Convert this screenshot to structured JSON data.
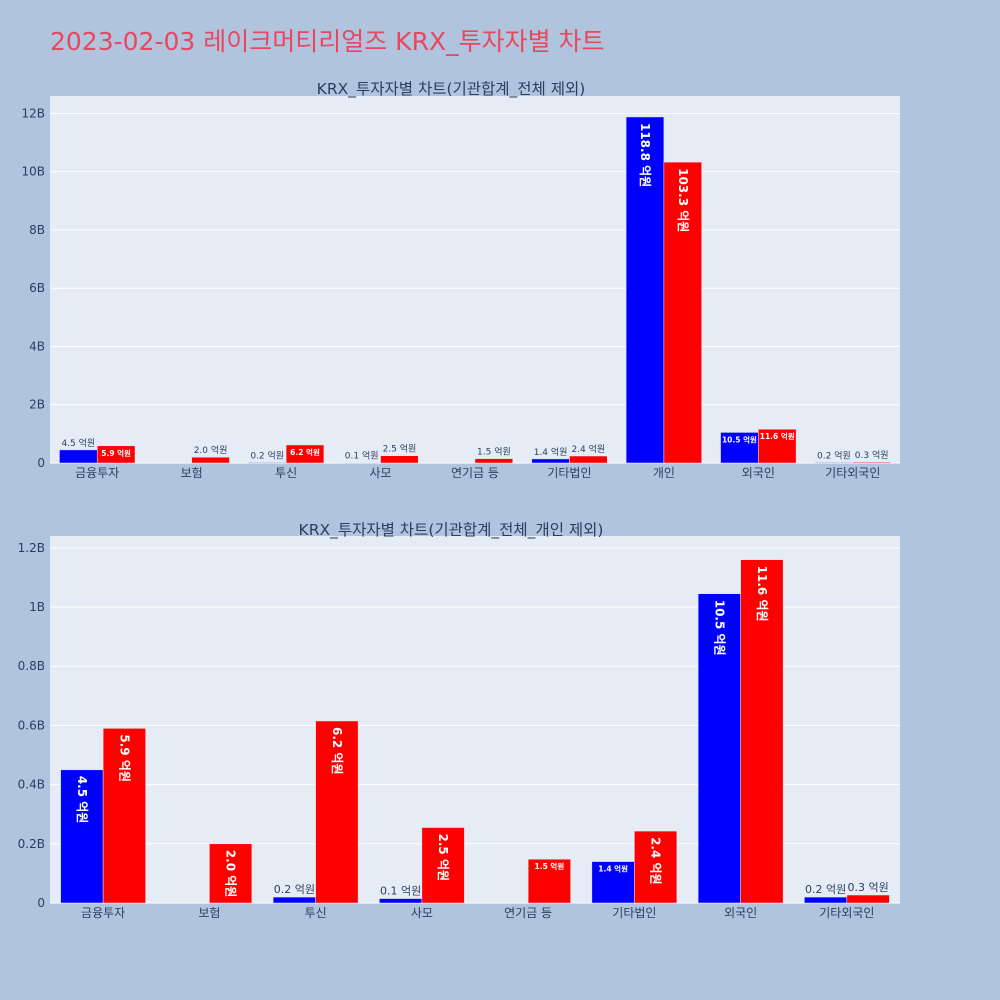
{
  "page_title": "2023-02-03 레이크머티리얼즈 KRX_투자자별 차트",
  "colors": {
    "buy": "#0000ff",
    "sell": "#ff0000",
    "title": "#e8475f",
    "plot_bg": "#e5ecf6",
    "page_bg": "#b0c4de",
    "text": "#2a3f5f"
  },
  "chart_data": [
    {
      "type": "bar",
      "title": "KRX_투자자별 차트(기관합계_전체 제외)",
      "categories": [
        "금융투자",
        "보험",
        "투신",
        "사모",
        "연기금 등",
        "기타법인",
        "개인",
        "외국인",
        "기타외국인"
      ],
      "ylim": [
        0,
        12.6
      ],
      "yticks": [
        0,
        2,
        4,
        6,
        8,
        10,
        12
      ],
      "ytick_labels": [
        "0",
        "2B",
        "4B",
        "6B",
        "8B",
        "10B",
        "12B"
      ],
      "grid": true,
      "series": [
        {
          "color": "#0000ff",
          "values": [
            0.45,
            0,
            0.02,
            0.01,
            0,
            0.14,
            11.88,
            1.05,
            0.02
          ],
          "labels": [
            "4.5 억원",
            "",
            "0.2 억원",
            "0.1 억원",
            "",
            "1.4 억원",
            "118.8 억원",
            "10.5 억원",
            "0.2 억원"
          ]
        },
        {
          "color": "#ff0000",
          "values": [
            0.59,
            0.2,
            0.62,
            0.25,
            0.15,
            0.24,
            10.33,
            1.16,
            0.03
          ],
          "labels": [
            "5.9 억원",
            "2.0 억원",
            "6.2 억원",
            "2.5 억원",
            "1.5 억원",
            "2.4 억원",
            "103.3 억원",
            "11.6 억원",
            "0.3 억원"
          ]
        }
      ]
    },
    {
      "type": "bar",
      "title": "KRX_투자자별 차트(기관합계_전체_개인 제외)",
      "categories": [
        "금융투자",
        "보험",
        "투신",
        "사모",
        "연기금 등",
        "기타법인",
        "외국인",
        "기타외국인"
      ],
      "ylim": [
        0,
        1.24
      ],
      "yticks": [
        0,
        0.2,
        0.4,
        0.6,
        0.8,
        1.0,
        1.2
      ],
      "ytick_labels": [
        "0",
        "0.2B",
        "0.4B",
        "0.6B",
        "0.8B",
        "1B",
        "1.2B"
      ],
      "grid": true,
      "series": [
        {
          "color": "#0000ff",
          "values": [
            0.45,
            0,
            0.02,
            0.015,
            0,
            0.14,
            1.045,
            0.02
          ],
          "labels": [
            "4.5 억원",
            "",
            "0.2 억원",
            "0.1 억원",
            "",
            "1.4 억원",
            "10.5 억원",
            "0.2 억원"
          ]
        },
        {
          "color": "#ff0000",
          "values": [
            0.59,
            0.2,
            0.615,
            0.255,
            0.148,
            0.243,
            1.16,
            0.027
          ],
          "labels": [
            "5.9 억원",
            "2.0 억원",
            "6.2 억원",
            "2.5 억원",
            "1.5 억원",
            "2.4 억원",
            "11.6 억원",
            "0.3 억원"
          ]
        }
      ]
    }
  ]
}
